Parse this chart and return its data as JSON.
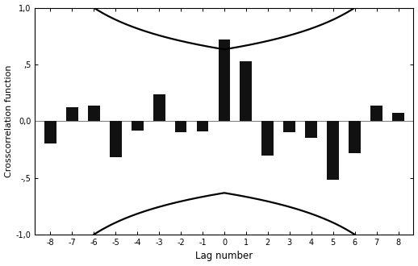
{
  "lags": [
    -8,
    -7,
    -6,
    -5,
    -4,
    -3,
    -2,
    -1,
    0,
    1,
    2,
    3,
    4,
    5,
    6,
    7,
    8
  ],
  "ccf_values": [
    -0.2,
    0.12,
    0.14,
    -0.32,
    -0.08,
    0.24,
    -0.1,
    -0.09,
    0.72,
    0.53,
    -0.3,
    -0.1,
    -0.15,
    -0.52,
    -0.28,
    0.14,
    0.07
  ],
  "bar_color": "#111111",
  "bar_width": 0.55,
  "ylim": [
    -1.0,
    1.0
  ],
  "yticks": [
    -1.0,
    -0.5,
    0.0,
    0.5,
    1.0
  ],
  "yticklabels": [
    "-1,0",
    "-,5",
    "0,0",
    ",5",
    "1,0"
  ],
  "xlabel": "Lag number",
  "ylabel": "Crosscorrelation function",
  "n": 10,
  "se_curve_color": "#000000",
  "se_curve_linewidth": 1.6,
  "background_color": "#ffffff",
  "title": ""
}
